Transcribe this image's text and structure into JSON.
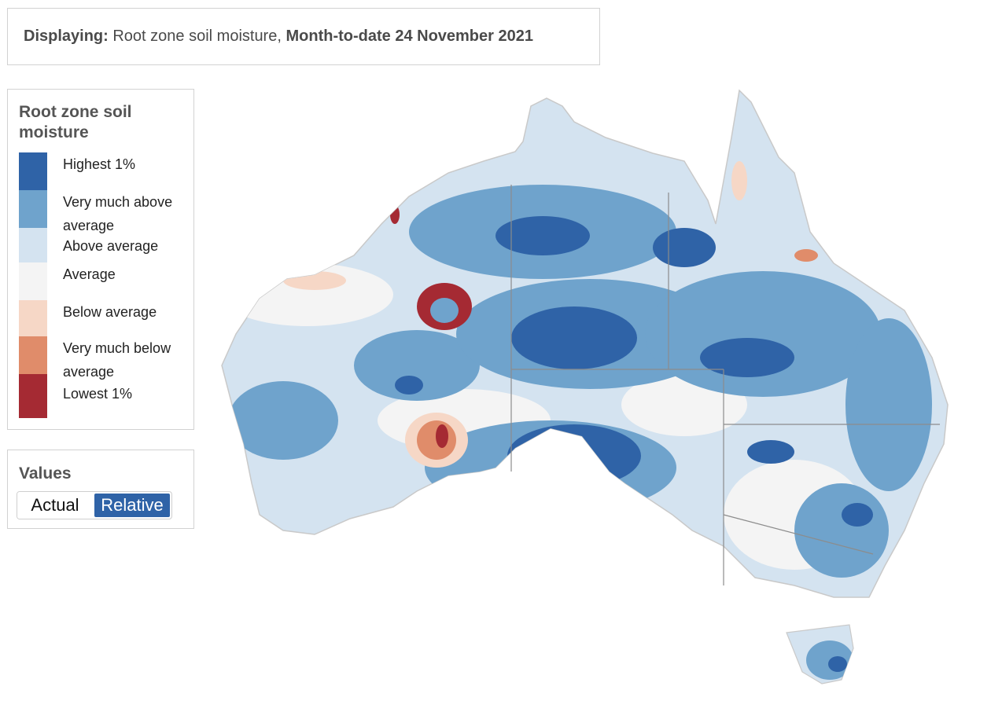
{
  "header": {
    "displaying_label": "Displaying:",
    "layer_name": "Root zone soil moisture,",
    "period": "Month-to-date 24 November 2021"
  },
  "legend": {
    "title": "Root zone soil moisture",
    "items": [
      {
        "label": "Highest 1%",
        "color": "#2f63a7"
      },
      {
        "label": "Very much above average",
        "color": "#6fa3cc"
      },
      {
        "label": "Above average",
        "color": "#d4e3f0"
      },
      {
        "label": "Average",
        "color": "#f4f4f4"
      },
      {
        "label": "Below average",
        "color": "#f6d7c6"
      },
      {
        "label": "Very much below average",
        "color": "#e08c6a"
      },
      {
        "label": "Lowest 1%",
        "color": "#a52a33"
      }
    ]
  },
  "values_panel": {
    "title": "Values",
    "options": [
      "Actual",
      "Relative"
    ],
    "selected": "Relative"
  }
}
